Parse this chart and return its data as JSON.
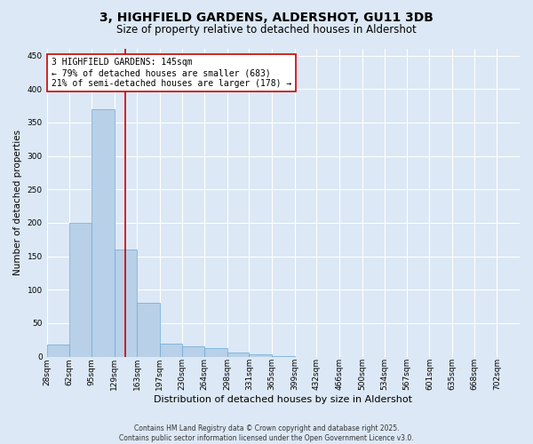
{
  "title": "3, HIGHFIELD GARDENS, ALDERSHOT, GU11 3DB",
  "subtitle": "Size of property relative to detached houses in Aldershot",
  "xlabel": "Distribution of detached houses by size in Aldershot",
  "ylabel": "Number of detached properties",
  "footer_line1": "Contains HM Land Registry data © Crown copyright and database right 2025.",
  "footer_line2": "Contains public sector information licensed under the Open Government Licence v3.0.",
  "bin_labels": [
    "28sqm",
    "62sqm",
    "95sqm",
    "129sqm",
    "163sqm",
    "197sqm",
    "230sqm",
    "264sqm",
    "298sqm",
    "331sqm",
    "365sqm",
    "399sqm",
    "432sqm",
    "466sqm",
    "500sqm",
    "534sqm",
    "567sqm",
    "601sqm",
    "635sqm",
    "668sqm",
    "702sqm"
  ],
  "bar_values": [
    18,
    200,
    370,
    160,
    80,
    20,
    15,
    13,
    6,
    4,
    1,
    0,
    0,
    0,
    0,
    0,
    0,
    0,
    0,
    0,
    0
  ],
  "bar_color": "#b8d0e8",
  "bar_edge_color": "#6aaad4",
  "ylim": [
    0,
    460
  ],
  "yticks": [
    0,
    50,
    100,
    150,
    200,
    250,
    300,
    350,
    400,
    450
  ],
  "property_size": 145,
  "red_line_color": "#cc0000",
  "annotation_line1": "3 HIGHFIELD GARDENS: 145sqm",
  "annotation_line2": "← 79% of detached houses are smaller (683)",
  "annotation_line3": "21% of semi-detached houses are larger (178) →",
  "annotation_box_color": "#ffffff",
  "annotation_border_color": "#cc0000",
  "background_color": "#dce8f5",
  "grid_color": "#ffffff",
  "title_fontsize": 10,
  "subtitle_fontsize": 8.5,
  "xlabel_fontsize": 8,
  "ylabel_fontsize": 7.5,
  "tick_fontsize": 6.5,
  "annotation_fontsize": 7,
  "footer_fontsize": 5.5
}
